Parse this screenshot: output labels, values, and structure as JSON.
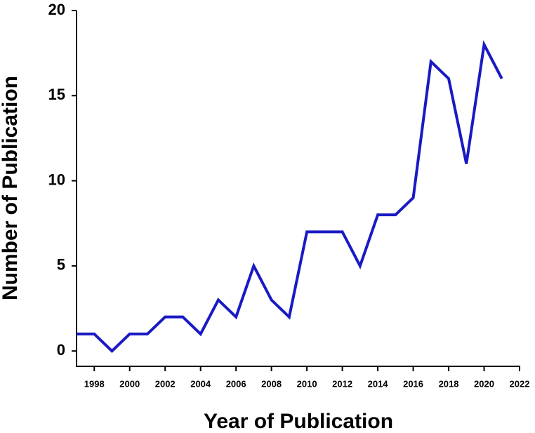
{
  "chart_data": {
    "type": "line",
    "x_label": "Year of Publication",
    "y_label": "Number of Publication",
    "x": [
      1997,
      1998,
      1999,
      2000,
      2001,
      2002,
      2003,
      2004,
      2005,
      2006,
      2007,
      2008,
      2009,
      2010,
      2011,
      2012,
      2013,
      2014,
      2015,
      2016,
      2017,
      2018,
      2019,
      2020,
      2021
    ],
    "series": [
      {
        "color": "#1a1ac4",
        "values": [
          1,
          1,
          0,
          1,
          1,
          2,
          2,
          1,
          3,
          2,
          5,
          3,
          2,
          7,
          7,
          7,
          5,
          8,
          8,
          9,
          17,
          16,
          11,
          18,
          16
        ]
      }
    ],
    "xlim": [
      1997,
      2022
    ],
    "xticks": [
      1998,
      2000,
      2002,
      2004,
      2006,
      2008,
      2010,
      2012,
      2014,
      2016,
      2018,
      2020,
      2022
    ],
    "ylim": [
      -0.9,
      20
    ],
    "yticks": [
      0,
      5,
      10,
      15,
      20
    ]
  }
}
